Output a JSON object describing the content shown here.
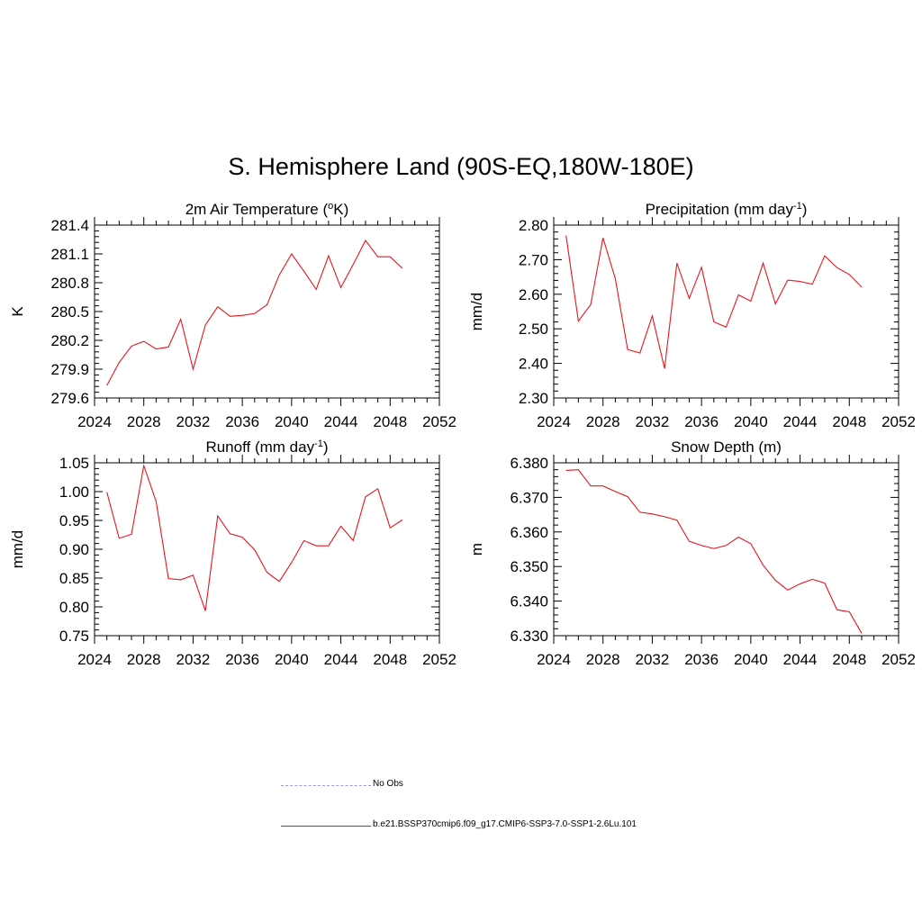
{
  "title": "S. Hemisphere Land (90S-EQ,180W-180E)",
  "colors": {
    "model": "#e8141e",
    "obs": "#9c9cdc",
    "axis": "#000000"
  },
  "legend": [
    {
      "label": "No Obs",
      "style": "dashed",
      "color": "#9c9cdc"
    },
    {
      "label": "b.e21.BSSP370cmip6.f09_g17.CMIP6-SSP3-7.0-SSP1-2.6Lu.101",
      "style": "solid",
      "color": "#e8141e"
    }
  ],
  "chart_data": [
    {
      "type": "line",
      "title": "2m Air Temperature (",
      "title_sup": "o",
      "title_post": "K)",
      "ylabel": "K",
      "xlim": [
        2024,
        2052
      ],
      "ylim": [
        279.6,
        281.4
      ],
      "xticks": [
        2024,
        2028,
        2032,
        2036,
        2040,
        2044,
        2048,
        2052
      ],
      "yticks": [
        279.6,
        279.9,
        280.2,
        280.5,
        280.8,
        281.1,
        281.4
      ],
      "ytick_decimals": 1,
      "yminor": 5,
      "x": [
        2025,
        2026,
        2027,
        2028,
        2029,
        2030,
        2031,
        2032,
        2033,
        2034,
        2035,
        2036,
        2037,
        2038,
        2039,
        2040,
        2041,
        2042,
        2043,
        2044,
        2045,
        2046,
        2047,
        2048,
        2049
      ],
      "series": [
        {
          "values": [
            279.73,
            279.97,
            280.14,
            280.19,
            280.11,
            280.13,
            280.42,
            279.9,
            280.36,
            280.55,
            280.45,
            280.46,
            280.48,
            280.57,
            280.88,
            281.1,
            280.92,
            280.73,
            281.08,
            280.75,
            280.99,
            281.24,
            281.07,
            281.07,
            280.95
          ]
        }
      ]
    },
    {
      "type": "line",
      "title": "Precipitation (mm day",
      "title_sup": "-1",
      "title_post": ")",
      "ylabel": "mm/d",
      "xlim": [
        2024,
        2052
      ],
      "ylim": [
        2.3,
        2.8
      ],
      "xticks": [
        2024,
        2028,
        2032,
        2036,
        2040,
        2044,
        2048,
        2052
      ],
      "yticks": [
        2.3,
        2.4,
        2.5,
        2.6,
        2.7,
        2.8
      ],
      "ytick_decimals": 2,
      "yminor": 5,
      "x": [
        2025,
        2026,
        2027,
        2028,
        2029,
        2030,
        2031,
        2032,
        2033,
        2034,
        2035,
        2036,
        2037,
        2038,
        2039,
        2040,
        2041,
        2042,
        2043,
        2044,
        2045,
        2046,
        2047,
        2048,
        2049
      ],
      "series": [
        {
          "values": [
            2.77,
            2.522,
            2.57,
            2.763,
            2.645,
            2.44,
            2.43,
            2.537,
            2.385,
            2.69,
            2.588,
            2.678,
            2.52,
            2.505,
            2.598,
            2.58,
            2.69,
            2.572,
            2.641,
            2.637,
            2.629,
            2.711,
            2.677,
            2.657,
            2.621
          ]
        }
      ]
    },
    {
      "type": "line",
      "title": "Runoff (mm day",
      "title_sup": "-1",
      "title_post": ")",
      "ylabel": "mm/d",
      "xlim": [
        2024,
        2052
      ],
      "ylim": [
        0.75,
        1.05
      ],
      "xticks": [
        2024,
        2028,
        2032,
        2036,
        2040,
        2044,
        2048,
        2052
      ],
      "yticks": [
        0.75,
        0.8,
        0.85,
        0.9,
        0.95,
        1.0,
        1.05
      ],
      "ytick_decimals": 2,
      "yminor": 5,
      "x": [
        2025,
        2026,
        2027,
        2028,
        2029,
        2030,
        2031,
        2032,
        2033,
        2034,
        2035,
        2036,
        2037,
        2038,
        2039,
        2040,
        2041,
        2042,
        2043,
        2044,
        2045,
        2046,
        2047,
        2048,
        2049
      ],
      "series": [
        {
          "values": [
            0.999,
            0.919,
            0.926,
            1.045,
            0.983,
            0.849,
            0.847,
            0.855,
            0.793,
            0.958,
            0.927,
            0.921,
            0.899,
            0.86,
            0.844,
            0.877,
            0.915,
            0.906,
            0.906,
            0.94,
            0.915,
            0.991,
            1.005,
            0.937,
            0.951
          ]
        }
      ]
    },
    {
      "type": "line",
      "title": "Snow Depth (m)",
      "title_sup": "",
      "title_post": "",
      "ylabel": "m",
      "xlim": [
        2024,
        2052
      ],
      "ylim": [
        6.33,
        6.38
      ],
      "xticks": [
        2024,
        2028,
        2032,
        2036,
        2040,
        2044,
        2048,
        2052
      ],
      "yticks": [
        6.33,
        6.34,
        6.35,
        6.36,
        6.37,
        6.38
      ],
      "ytick_decimals": 3,
      "yminor": 5,
      "x": [
        2025,
        2026,
        2027,
        2028,
        2029,
        2030,
        2031,
        2032,
        2033,
        2034,
        2035,
        2036,
        2037,
        2038,
        2039,
        2040,
        2041,
        2042,
        2043,
        2044,
        2045,
        2046,
        2047,
        2048,
        2049
      ],
      "series": [
        {
          "values": [
            6.3778,
            6.378,
            6.3733,
            6.3733,
            6.3717,
            6.3702,
            6.3657,
            6.3652,
            6.3644,
            6.3634,
            6.3573,
            6.3561,
            6.3552,
            6.3561,
            6.3585,
            6.3566,
            6.3504,
            6.346,
            6.3432,
            6.345,
            6.3463,
            6.3452,
            6.3375,
            6.3369,
            6.3307
          ]
        }
      ]
    }
  ]
}
